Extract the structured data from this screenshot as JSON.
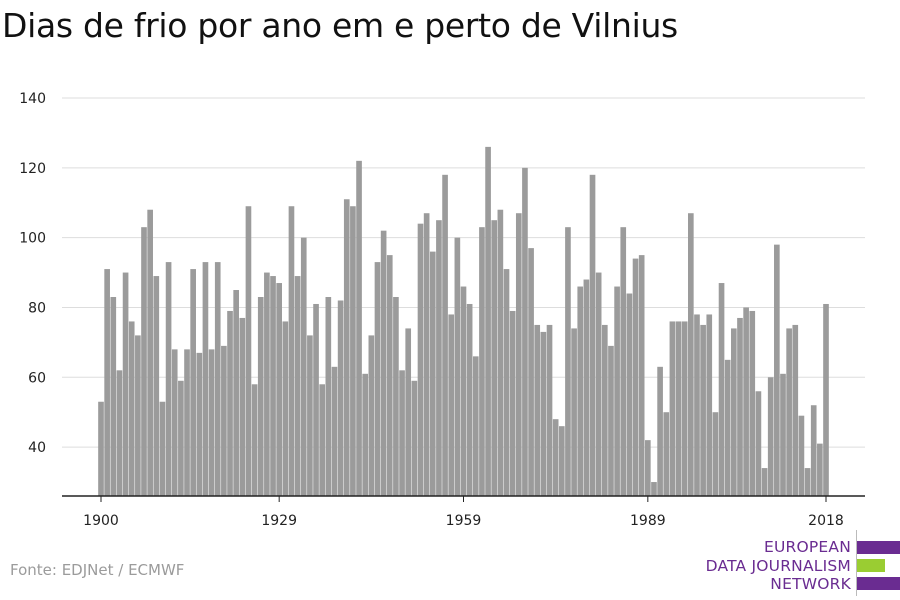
{
  "title": "Dias de frio por ano em e perto de Vilnius",
  "source": "Fonte: EDJNet / ECMWF",
  "logo": {
    "lines": [
      "EUROPEAN",
      "DATA JOURNALISM",
      "NETWORK"
    ],
    "colors": {
      "purple": "#6a2c91",
      "green": "#9acd32"
    }
  },
  "colors": {
    "bar": "#9b9b9b",
    "grid": "#dddddd",
    "axis": "#222222",
    "text": "#222222"
  },
  "chart_data": {
    "type": "bar",
    "title": "Dias de frio por ano em e perto de Vilnius",
    "xlabel": "",
    "ylabel": "",
    "ylim": [
      26,
      140
    ],
    "yticks": [
      40,
      60,
      80,
      100,
      120,
      140
    ],
    "xticks": [
      1900,
      1929,
      1959,
      1989,
      2018
    ],
    "grid": true,
    "x": [
      1900,
      1901,
      1902,
      1903,
      1904,
      1905,
      1906,
      1907,
      1908,
      1909,
      1910,
      1911,
      1912,
      1913,
      1914,
      1915,
      1916,
      1917,
      1918,
      1919,
      1920,
      1921,
      1922,
      1923,
      1924,
      1925,
      1926,
      1927,
      1928,
      1929,
      1930,
      1931,
      1932,
      1933,
      1934,
      1935,
      1936,
      1937,
      1938,
      1939,
      1940,
      1941,
      1942,
      1943,
      1944,
      1945,
      1946,
      1947,
      1948,
      1949,
      1950,
      1951,
      1952,
      1953,
      1954,
      1955,
      1956,
      1957,
      1958,
      1959,
      1960,
      1961,
      1962,
      1963,
      1964,
      1965,
      1966,
      1967,
      1968,
      1969,
      1970,
      1971,
      1972,
      1973,
      1974,
      1975,
      1976,
      1977,
      1978,
      1979,
      1980,
      1981,
      1982,
      1983,
      1984,
      1985,
      1986,
      1987,
      1988,
      1989,
      1990,
      1991,
      1992,
      1993,
      1994,
      1995,
      1996,
      1997,
      1998,
      1999,
      2000,
      2001,
      2002,
      2003,
      2004,
      2005,
      2006,
      2007,
      2008,
      2009,
      2010,
      2011,
      2012,
      2013,
      2014,
      2015,
      2016,
      2017,
      2018
    ],
    "values": [
      53,
      91,
      83,
      62,
      90,
      76,
      72,
      103,
      108,
      89,
      53,
      93,
      68,
      59,
      68,
      91,
      67,
      93,
      68,
      93,
      69,
      79,
      85,
      77,
      109,
      58,
      83,
      90,
      89,
      87,
      76,
      109,
      89,
      100,
      72,
      81,
      58,
      83,
      63,
      82,
      111,
      109,
      122,
      61,
      72,
      93,
      102,
      95,
      83,
      62,
      74,
      59,
      104,
      107,
      96,
      105,
      118,
      78,
      100,
      86,
      81,
      66,
      103,
      126,
      105,
      108,
      91,
      79,
      107,
      120,
      97,
      75,
      73,
      75,
      48,
      46,
      103,
      74,
      86,
      88,
      118,
      90,
      75,
      69,
      86,
      103,
      84,
      94,
      95,
      42,
      30,
      63,
      50,
      76,
      76,
      76,
      107,
      78,
      75,
      78,
      50,
      87,
      65,
      74,
      77,
      80,
      79,
      56,
      34,
      60,
      98,
      61,
      74,
      75,
      49,
      34,
      52,
      41,
      81
    ]
  }
}
